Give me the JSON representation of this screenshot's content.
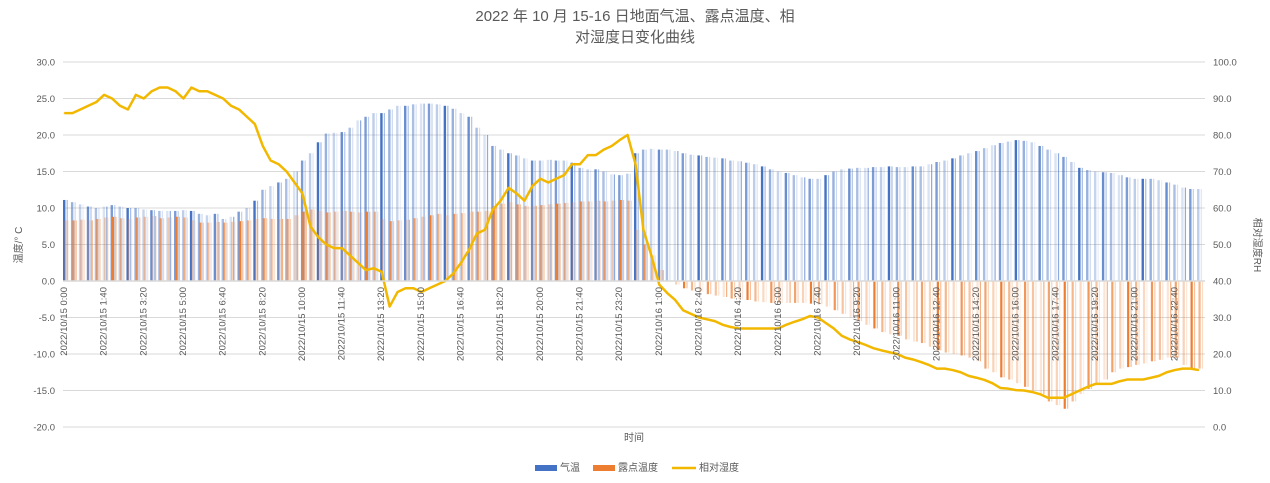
{
  "chart_data": {
    "type": "bar+line",
    "title": "2022 年 10 月 15-16 日地面气温、露点温度、相对湿度日变化曲线",
    "xlabel": "时间",
    "ylabel": "温度/° C",
    "y2label": "相对湿度RH",
    "ylim": [
      -20,
      30
    ],
    "y2lim": [
      0,
      100
    ],
    "yticks": [
      "30.0",
      "25.0",
      "20.0",
      "15.0",
      "10.0",
      "5.0",
      "0.0",
      "-5.0",
      "-10.0",
      "-15.0",
      "-20.0"
    ],
    "y2ticks": [
      "100.0",
      "90.0",
      "80.0",
      "70.0",
      "60.0",
      "50.0",
      "40.0",
      "30.0",
      "20.0",
      "10.0",
      "0.0"
    ],
    "x_start": "2022/10/15 0:00",
    "x_interval_minutes": 20,
    "x_tick_labels": [
      "2022/10/15 0:00",
      "2022/10/15 1:40",
      "2022/10/15 3:20",
      "2022/10/15 5:00",
      "2022/10/15 6:40",
      "2022/10/15 8:20",
      "2022/10/15 10:00",
      "2022/10/15 11:40",
      "2022/10/15 13:20",
      "2022/10/15 15:00",
      "2022/10/15 16:40",
      "2022/10/15 18:20",
      "2022/10/15 20:00",
      "2022/10/15 21:40",
      "2022/10/15 23:20",
      "2022/10/16 1:00",
      "2022/10/16 2:40",
      "2022/10/16 4:20",
      "2022/10/16 6:00",
      "2022/10/16 7:40",
      "2022/10/16 9:20",
      "2022/10/16 11:00",
      "2022/10/16 12:40",
      "2022/10/16 14:20",
      "2022/10/16 16:00",
      "2022/10/16 17:40",
      "2022/10/16 19:20",
      "2022/10/16 21:00",
      "2022/10/16 22:40"
    ],
    "legend_position": "bottom",
    "grid": true,
    "series": [
      {
        "name": "气温",
        "type": "bar",
        "axis": "left",
        "color": "#4472C4",
        "values": [
          11.1,
          10.8,
          10.5,
          10.2,
          10.0,
          10.2,
          10.4,
          10.2,
          10.0,
          10.0,
          9.8,
          9.7,
          9.6,
          9.6,
          9.6,
          9.7,
          9.6,
          9.2,
          9.0,
          9.2,
          8.5,
          8.8,
          9.5,
          10.0,
          11.0,
          12.5,
          13.0,
          13.5,
          14.0,
          15.0,
          16.5,
          17.5,
          19.0,
          20.2,
          20.3,
          20.4,
          21.0,
          22.0,
          22.5,
          23.0,
          23.0,
          23.5,
          24.0,
          24.0,
          24.2,
          24.3,
          24.3,
          24.2,
          24.0,
          23.6,
          23.0,
          22.5,
          21.0,
          20.0,
          18.5,
          18.0,
          17.5,
          17.2,
          16.8,
          16.5,
          16.5,
          16.6,
          16.5,
          16.5,
          16.2,
          15.5,
          15.3,
          15.3,
          15.0,
          14.6,
          14.5,
          14.7,
          17.5,
          18.0,
          18.1,
          18.0,
          18.0,
          17.8,
          17.5,
          17.3,
          17.2,
          17.0,
          16.9,
          16.8,
          16.5,
          16.4,
          16.2,
          16.0,
          15.7,
          15.3,
          15.0,
          14.8,
          14.5,
          14.2,
          14.0,
          14.0,
          14.5,
          15.0,
          15.3,
          15.4,
          15.5,
          15.5,
          15.6,
          15.6,
          15.7,
          15.6,
          15.6,
          15.7,
          15.7,
          16.0,
          16.3,
          16.5,
          16.8,
          17.2,
          17.5,
          17.8,
          18.2,
          18.6,
          18.9,
          19.1,
          19.3,
          19.2,
          19.0,
          18.5,
          18.0,
          17.5,
          17.0,
          16.3,
          15.5,
          15.2,
          15.0,
          14.9,
          14.8,
          14.5,
          14.2,
          14.0,
          14.0,
          14.0,
          13.8,
          13.5,
          13.2,
          12.8,
          12.6,
          12.6
        ]
      },
      {
        "name": "露点温度",
        "type": "bar",
        "axis": "left",
        "color": "#ED7D31",
        "values": [
          8.3,
          8.3,
          8.4,
          8.3,
          8.5,
          8.7,
          8.8,
          8.6,
          8.5,
          8.7,
          8.8,
          8.9,
          8.6,
          8.7,
          8.8,
          8.7,
          8.3,
          8.0,
          8.0,
          8.1,
          8.0,
          8.1,
          8.2,
          8.3,
          8.5,
          8.6,
          8.5,
          8.5,
          8.5,
          9.0,
          9.5,
          9.8,
          9.6,
          9.4,
          9.5,
          9.6,
          9.5,
          9.4,
          9.5,
          9.5,
          8.5,
          8.2,
          8.3,
          8.4,
          8.6,
          8.8,
          9.0,
          9.2,
          9.0,
          9.2,
          9.3,
          9.5,
          9.5,
          9.6,
          10.2,
          10.6,
          10.8,
          10.5,
          10.3,
          10.3,
          10.4,
          10.5,
          10.6,
          10.7,
          10.8,
          10.9,
          10.9,
          11.0,
          10.9,
          11.0,
          11.1,
          11.0,
          7.0,
          5.0,
          3.5,
          1.5,
          0.0,
          -0.5,
          -1.0,
          -1.3,
          -1.5,
          -1.8,
          -2.0,
          -2.2,
          -2.4,
          -2.5,
          -2.6,
          -2.8,
          -2.9,
          -3.0,
          -3.0,
          -3.0,
          -3.0,
          -3.0,
          -3.1,
          -3.2,
          -3.5,
          -4.0,
          -4.5,
          -5.0,
          -5.5,
          -6.0,
          -6.5,
          -7.0,
          -7.3,
          -7.5,
          -8.0,
          -8.3,
          -8.5,
          -9.0,
          -9.5,
          -9.8,
          -10.0,
          -10.2,
          -10.5,
          -11.0,
          -12.0,
          -12.5,
          -13.2,
          -13.5,
          -14.0,
          -14.5,
          -15.0,
          -15.5,
          -16.5,
          -17.0,
          -17.5,
          -16.5,
          -15.5,
          -14.8,
          -14.0,
          -13.5,
          -12.5,
          -12.0,
          -11.8,
          -11.5,
          -11.3,
          -11.0,
          -10.8,
          -10.5,
          -10.5,
          -11.5,
          -12.0,
          -12.0
        ]
      },
      {
        "name": "相对湿度",
        "type": "line",
        "axis": "right",
        "color": "#F2B800",
        "values": [
          86,
          86,
          87,
          88,
          89,
          91,
          90,
          88,
          87,
          91,
          90,
          92,
          93,
          93,
          92,
          90,
          93,
          92,
          92,
          91,
          90,
          88,
          87,
          85,
          83,
          77,
          73,
          72,
          70,
          67,
          64,
          55,
          52,
          50,
          49,
          49,
          47,
          45,
          43,
          43.5,
          42.5,
          33,
          37,
          38,
          38,
          37,
          38,
          39,
          40,
          42,
          45,
          48.5,
          53,
          54,
          59.5,
          62,
          65.5,
          64,
          62,
          66,
          68,
          67,
          68,
          69,
          72,
          72,
          74.5,
          74.5,
          76,
          77,
          78.6,
          80,
          72,
          54,
          47,
          39,
          36.7,
          34.8,
          32,
          31,
          30,
          29.5,
          29,
          28,
          27.4,
          27,
          27,
          27,
          27,
          27,
          27,
          28,
          28.8,
          29.5,
          30.4,
          30,
          28.5,
          27,
          25,
          24,
          23.3,
          22.5,
          21.6,
          21,
          20.5,
          20,
          19,
          18.5,
          17.8,
          17,
          16,
          16,
          15.6,
          15,
          14,
          13.5,
          12.9,
          12,
          10.7,
          10.5,
          10.1,
          10,
          9.6,
          9,
          8,
          8,
          8,
          9,
          10,
          11,
          11.8,
          11.8,
          11.8,
          12.5,
          13,
          13,
          13,
          13.5,
          14,
          15,
          15.6,
          16,
          16,
          15.6
        ]
      }
    ]
  }
}
